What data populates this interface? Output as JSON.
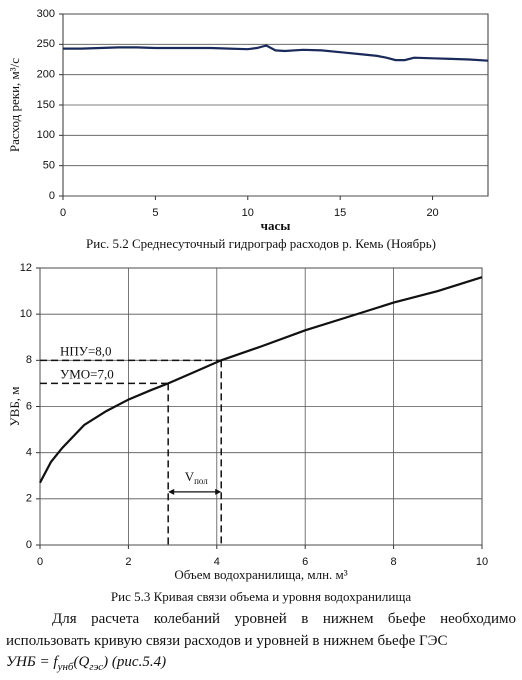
{
  "chart_data": [
    {
      "type": "line",
      "title": "Рис. 5.2 Среднесуточный гидрограф расходов р. Кемь (Ноябрь)",
      "x_label": "часы",
      "y_label": "Расход реки, м³/с",
      "x": [
        0,
        1,
        2,
        3,
        4,
        5,
        6,
        7,
        8,
        9,
        10,
        10.5,
        11,
        11.5,
        12,
        13,
        14,
        15,
        16,
        17,
        17.5,
        18,
        18.5,
        19,
        20,
        21,
        22,
        23
      ],
      "values": [
        243,
        243,
        244,
        245,
        245,
        244,
        244,
        244,
        244,
        243,
        242,
        244,
        248,
        240,
        239,
        241,
        240,
        237,
        234,
        231,
        228,
        224,
        224,
        228,
        227,
        226,
        225,
        223
      ],
      "color": "#1a2a5a",
      "xlim": [
        0,
        23
      ],
      "ylim": [
        0,
        300
      ],
      "xticks": [
        0,
        5,
        10,
        15,
        20
      ],
      "yticks": [
        0,
        50,
        100,
        150,
        200,
        250,
        300
      ],
      "grid": "y"
    },
    {
      "type": "line",
      "title": "Рис 5.3 Кривая связи объема и уровня водохранилища",
      "x_label": "Объем водохранилища, млн. м³",
      "y_label": "УВБ, м",
      "x": [
        0,
        0.25,
        0.5,
        1,
        1.5,
        2,
        2.5,
        2.9,
        3.5,
        4.1,
        5,
        6,
        7,
        8,
        9,
        10
      ],
      "values": [
        2.7,
        3.6,
        4.2,
        5.2,
        5.8,
        6.3,
        6.7,
        7.0,
        7.5,
        8.0,
        8.6,
        9.3,
        9.9,
        10.5,
        11.0,
        11.6
      ],
      "color": "#111111",
      "xlim": [
        0,
        10
      ],
      "ylim": [
        0,
        12
      ],
      "xticks": [
        0,
        2,
        4,
        6,
        8,
        10
      ],
      "yticks": [
        0,
        2,
        4,
        6,
        8,
        10,
        12
      ],
      "grid": "xy",
      "reference_lines": [
        {
          "label": "НПУ=8,0",
          "y": 8,
          "x": 4.1
        },
        {
          "label": "УМО=7,0",
          "y": 7,
          "x": 2.9
        }
      ],
      "annotation": {
        "text": "V",
        "subscript": "пол"
      }
    }
  ],
  "paragraph": "Для расчета колебаний уровней в нижнем бьефе необходимо использовать кривую связи расходов и уровней в нижнем бьефе ГЭС",
  "formula": [
    {
      "text": "УНБ = "
    },
    {
      "text": "f",
      "sub": "унб"
    },
    {
      "text": "(Q",
      "sub": "гэс"
    },
    {
      "text": ") (рис.5.4)"
    }
  ]
}
